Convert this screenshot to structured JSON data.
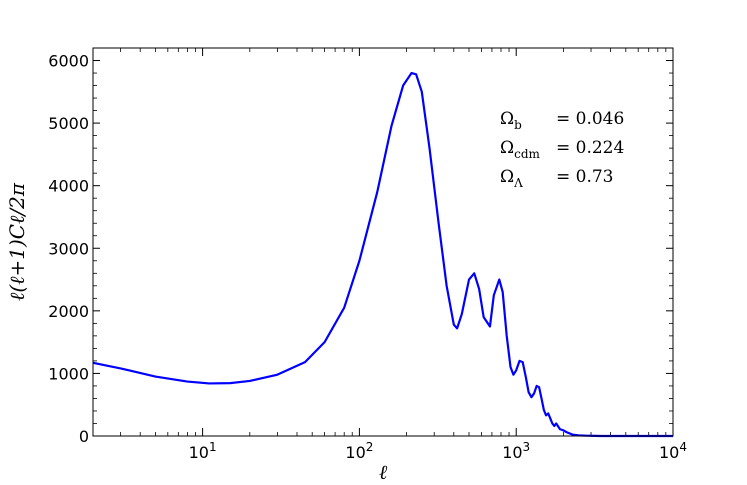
{
  "chart_data": {
    "type": "line",
    "xlabel": "ℓ",
    "ylabel": "ℓ(ℓ+1)Cℓ/2π",
    "xscale": "log",
    "xlim": [
      2,
      10000
    ],
    "ylim": [
      0,
      6200
    ],
    "grid": false,
    "color": "#0000ff",
    "x_ticks": [
      {
        "value": 10,
        "base": "10",
        "exp": "1"
      },
      {
        "value": 100,
        "base": "10",
        "exp": "2"
      },
      {
        "value": 1000,
        "base": "10",
        "exp": "3"
      },
      {
        "value": 10000,
        "base": "10",
        "exp": "4"
      }
    ],
    "y_ticks": [
      0,
      1000,
      2000,
      3000,
      4000,
      5000,
      6000
    ],
    "annotations": [
      {
        "symbol": "Ω",
        "sub": "b",
        "value": "= 0.046"
      },
      {
        "symbol": "Ω",
        "sub": "cdm",
        "value": "= 0.224"
      },
      {
        "symbol": "Ω",
        "sub": "Λ",
        "value": "= 0.73"
      }
    ],
    "series": [
      {
        "x": [
          2,
          3,
          5,
          8,
          11,
          15,
          20,
          30,
          45,
          60,
          80,
          100,
          130,
          160,
          190,
          215,
          230,
          250,
          280,
          320,
          360,
          400,
          420,
          450,
          500,
          540,
          580,
          620,
          680,
          720,
          780,
          820,
          870,
          920,
          960,
          1000,
          1050,
          1100,
          1150,
          1200,
          1250,
          1300,
          1350,
          1400,
          1450,
          1500,
          1550,
          1600,
          1650,
          1700,
          1750,
          1800,
          1900,
          2000,
          2100,
          2200,
          2300,
          2500,
          2800,
          3200,
          3500,
          4000,
          5000,
          7000,
          10000
        ],
        "y": [
          1170,
          1080,
          950,
          870,
          840,
          845,
          880,
          980,
          1180,
          1500,
          2050,
          2800,
          3900,
          4950,
          5600,
          5800,
          5780,
          5500,
          4600,
          3400,
          2400,
          1780,
          1720,
          1950,
          2500,
          2600,
          2350,
          1900,
          1750,
          2250,
          2500,
          2300,
          1600,
          1100,
          980,
          1050,
          1200,
          1180,
          950,
          700,
          620,
          680,
          800,
          780,
          600,
          420,
          330,
          360,
          280,
          200,
          160,
          200,
          110,
          90,
          60,
          40,
          20,
          10,
          5,
          2,
          0,
          0,
          0,
          0,
          0
        ]
      }
    ]
  }
}
